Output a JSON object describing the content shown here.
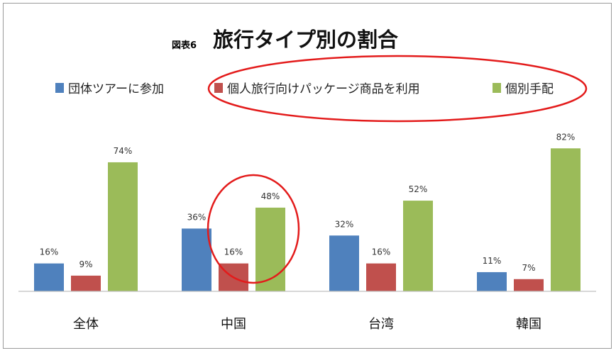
{
  "figure_label": "図表6",
  "chart_data": {
    "type": "bar",
    "title": "旅行タイプ別の割合",
    "categories": [
      "全体",
      "中国",
      "台湾",
      "韓国"
    ],
    "series": [
      {
        "name": "団体ツアーに参加",
        "color": "#4f81bd",
        "values": [
          16,
          36,
          32,
          11
        ]
      },
      {
        "name": "個人旅行向けパッケージ商品を利用",
        "color": "#c0504d",
        "values": [
          9,
          16,
          16,
          7
        ]
      },
      {
        "name": "個別手配",
        "color": "#9bbb59",
        "values": [
          74,
          48,
          52,
          82
        ]
      }
    ],
    "value_suffix": "%",
    "ylim": [
      0,
      100
    ],
    "grid": false,
    "legend_position": "top",
    "annotations": [
      {
        "type": "ellipse",
        "color": "#e31b1b",
        "target": "legend series 2-3"
      },
      {
        "type": "ellipse",
        "color": "#e31b1b",
        "target": "中国 bars 2-3"
      }
    ]
  }
}
